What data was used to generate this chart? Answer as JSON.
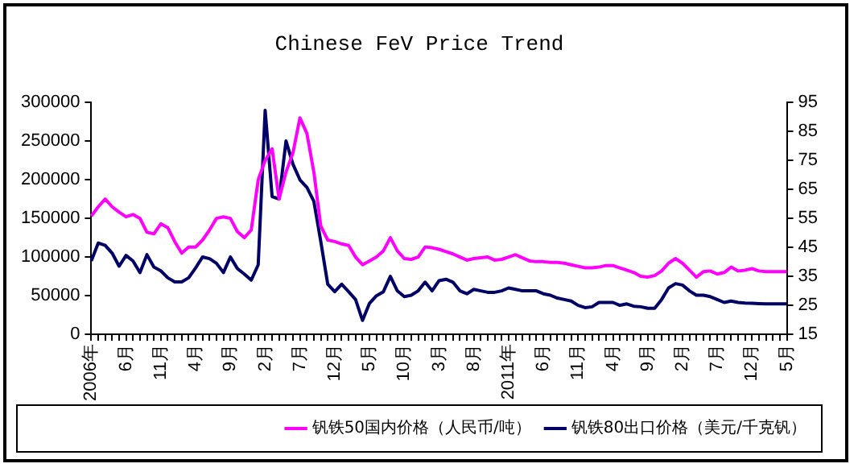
{
  "chart_data": {
    "type": "line",
    "title": "Chinese FeV Price Trend",
    "categories": [
      "2006年",
      null,
      null,
      null,
      null,
      "6月",
      null,
      null,
      null,
      null,
      "11月",
      null,
      null,
      null,
      null,
      "4月",
      null,
      null,
      null,
      null,
      "9月",
      null,
      null,
      null,
      null,
      "2月",
      null,
      null,
      null,
      null,
      "7月",
      null,
      null,
      null,
      null,
      "12月",
      null,
      null,
      null,
      null,
      "5月",
      null,
      null,
      null,
      null,
      "10月",
      null,
      null,
      null,
      null,
      "3月",
      null,
      null,
      null,
      null,
      "8月",
      null,
      null,
      null,
      null,
      "2011年",
      null,
      null,
      null,
      null,
      "6月",
      null,
      null,
      null,
      null,
      "11月",
      null,
      null,
      null,
      null,
      "4月",
      null,
      null,
      null,
      null,
      "9月",
      null,
      null,
      null,
      null,
      "2月",
      null,
      null,
      null,
      null,
      "7月",
      null,
      null,
      null,
      null,
      "12月",
      null,
      null,
      null,
      null,
      "5月"
    ],
    "series": [
      {
        "name": "钒铁50国内价格（人民币/吨）",
        "color": "#ff00ff",
        "values": [
          153000,
          165000,
          175000,
          165000,
          158000,
          152000,
          155000,
          150000,
          132000,
          130000,
          143000,
          138000,
          120000,
          105000,
          113000,
          113000,
          122000,
          135000,
          150000,
          152000,
          150000,
          133000,
          125000,
          135000,
          200000,
          225000,
          240000,
          175000,
          210000,
          235000,
          280000,
          260000,
          210000,
          140000,
          122000,
          120000,
          117000,
          115000,
          100000,
          90000,
          95000,
          100000,
          108000,
          125000,
          108000,
          98000,
          97000,
          100000,
          113000,
          112000,
          110000,
          107000,
          104000,
          100000,
          96000,
          98000,
          99000,
          100000,
          96000,
          97000,
          100000,
          103000,
          99000,
          95000,
          94000,
          94000,
          93000,
          93000,
          92000,
          90000,
          88000,
          86000,
          86000,
          87000,
          89000,
          89000,
          86000,
          83000,
          80000,
          75000,
          74000,
          76000,
          82000,
          92000,
          98000,
          92000,
          83000,
          74000,
          81000,
          82000,
          78000,
          80000,
          87000,
          82000,
          83000,
          85000,
          82000,
          81000,
          81000,
          81000,
          81000
        ]
      },
      {
        "name": "钒铁80出口价格（美元/千克钒）",
        "color": "#000066",
        "axis": "y2",
        "values": [
          40.3,
          46.5,
          45.7,
          43,
          38.5,
          42.2,
          40.3,
          36.3,
          42.5,
          38.2,
          36.9,
          34.5,
          33.1,
          33.1,
          34.5,
          37.9,
          41.7,
          41.1,
          39.5,
          36.3,
          41.7,
          37.7,
          35.8,
          33.7,
          39,
          92.3,
          62.5,
          61.7,
          81.7,
          73.7,
          68.3,
          65.7,
          60.9,
          47,
          32.3,
          29.7,
          32.3,
          29.7,
          27,
          19.8,
          25.7,
          28.3,
          29.7,
          35,
          30,
          28,
          28.5,
          30,
          33,
          30,
          33.5,
          34,
          33,
          30,
          29,
          30.5,
          30,
          29.5,
          29.5,
          30,
          31,
          30.5,
          30,
          30,
          30,
          29,
          28.5,
          27.5,
          27,
          26.5,
          25,
          24.2,
          24.5,
          26,
          26,
          26,
          25,
          25.5,
          24.7,
          24.5,
          24,
          24,
          27,
          31,
          32.5,
          32,
          30,
          28.5,
          28.5,
          28,
          27,
          26,
          26.5,
          26,
          25.8,
          25.7,
          25.6,
          25.5,
          25.5,
          25.5,
          25.5
        ]
      }
    ],
    "ylim": [
      0,
      300000
    ],
    "yticks": [
      0,
      50000,
      100000,
      150000,
      200000,
      250000,
      300000
    ],
    "y2lim": [
      15,
      95
    ],
    "y2ticks": [
      15,
      25,
      35,
      45,
      55,
      65,
      75,
      85,
      95
    ],
    "legend": "bottom",
    "marker": "none",
    "line_style": "solid"
  }
}
